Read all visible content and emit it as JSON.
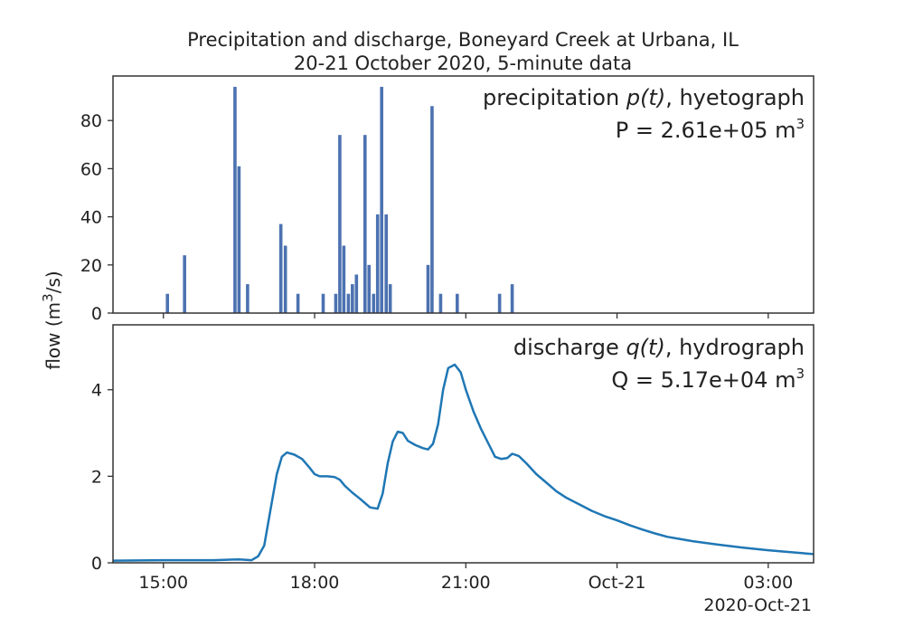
{
  "chart_data": {
    "type": "bar+line",
    "title_line1": "Precipitation and discharge, Boneyard Creek at Urbana, IL",
    "title_line2": "20-21 October 2020, 5-minute data",
    "ylabel_main": "flow (m",
    "ylabel_sup": "3",
    "ylabel_tail": "/s)",
    "x_range_hours": [
      14.0,
      27.9
    ],
    "x_ticks": [
      {
        "hour": 15,
        "label": "15:00"
      },
      {
        "hour": 18,
        "label": "18:00"
      },
      {
        "hour": 21,
        "label": "21:00"
      },
      {
        "hour": 24,
        "label": "Oct-21"
      },
      {
        "hour": 27,
        "label": "03:00"
      }
    ],
    "x_offset_label": "2020-Oct-21",
    "precipitation": {
      "type": "bar",
      "label_pre": "precipitation ",
      "label_var": "p(t)",
      "label_post": ", hyetograph",
      "total_main": "P = 2.61e+05 m",
      "total_sup": "3",
      "ylim": [
        0,
        98.5
      ],
      "yticks": [
        0,
        20,
        40,
        60,
        80
      ],
      "color": "#4c72b0",
      "bars": [
        {
          "t": 15.08,
          "v": 8
        },
        {
          "t": 15.42,
          "v": 24
        },
        {
          "t": 16.42,
          "v": 94
        },
        {
          "t": 16.5,
          "v": 61
        },
        {
          "t": 16.67,
          "v": 12
        },
        {
          "t": 17.33,
          "v": 37
        },
        {
          "t": 17.42,
          "v": 28
        },
        {
          "t": 17.67,
          "v": 8
        },
        {
          "t": 18.17,
          "v": 8
        },
        {
          "t": 18.42,
          "v": 8
        },
        {
          "t": 18.5,
          "v": 74
        },
        {
          "t": 18.58,
          "v": 28
        },
        {
          "t": 18.67,
          "v": 8
        },
        {
          "t": 18.75,
          "v": 12
        },
        {
          "t": 18.83,
          "v": 16
        },
        {
          "t": 19.0,
          "v": 74
        },
        {
          "t": 19.08,
          "v": 20
        },
        {
          "t": 19.17,
          "v": 8
        },
        {
          "t": 19.25,
          "v": 41
        },
        {
          "t": 19.33,
          "v": 94
        },
        {
          "t": 19.42,
          "v": 41
        },
        {
          "t": 19.5,
          "v": 12
        },
        {
          "t": 20.25,
          "v": 20
        },
        {
          "t": 20.33,
          "v": 86
        },
        {
          "t": 20.5,
          "v": 8
        },
        {
          "t": 20.83,
          "v": 8
        },
        {
          "t": 21.67,
          "v": 8
        },
        {
          "t": 21.92,
          "v": 12
        }
      ]
    },
    "discharge": {
      "type": "line",
      "label_pre": "discharge ",
      "label_var": "q(t)",
      "label_post": ", hydrograph",
      "total_main": "Q = 5.17e+04 m",
      "total_sup": "3",
      "ylim": [
        0,
        5.5
      ],
      "yticks": [
        0,
        2,
        4
      ],
      "color": "#1f77b4",
      "points": [
        [
          14.0,
          0.05
        ],
        [
          15.0,
          0.06
        ],
        [
          16.0,
          0.06
        ],
        [
          16.5,
          0.08
        ],
        [
          16.75,
          0.06
        ],
        [
          16.88,
          0.15
        ],
        [
          17.0,
          0.4
        ],
        [
          17.12,
          1.2
        ],
        [
          17.25,
          2.05
        ],
        [
          17.35,
          2.45
        ],
        [
          17.45,
          2.55
        ],
        [
          17.6,
          2.5
        ],
        [
          17.75,
          2.4
        ],
        [
          17.9,
          2.2
        ],
        [
          18.0,
          2.05
        ],
        [
          18.1,
          2.0
        ],
        [
          18.25,
          2.0
        ],
        [
          18.4,
          1.98
        ],
        [
          18.5,
          1.92
        ],
        [
          18.6,
          1.78
        ],
        [
          18.75,
          1.62
        ],
        [
          18.9,
          1.48
        ],
        [
          19.0,
          1.38
        ],
        [
          19.1,
          1.28
        ],
        [
          19.25,
          1.25
        ],
        [
          19.35,
          1.6
        ],
        [
          19.45,
          2.3
        ],
        [
          19.55,
          2.8
        ],
        [
          19.65,
          3.03
        ],
        [
          19.75,
          3.0
        ],
        [
          19.85,
          2.82
        ],
        [
          20.0,
          2.72
        ],
        [
          20.15,
          2.65
        ],
        [
          20.25,
          2.62
        ],
        [
          20.35,
          2.75
        ],
        [
          20.45,
          3.2
        ],
        [
          20.55,
          4.0
        ],
        [
          20.65,
          4.5
        ],
        [
          20.78,
          4.58
        ],
        [
          20.9,
          4.4
        ],
        [
          21.0,
          4.0
        ],
        [
          21.15,
          3.5
        ],
        [
          21.3,
          3.1
        ],
        [
          21.45,
          2.75
        ],
        [
          21.58,
          2.45
        ],
        [
          21.7,
          2.4
        ],
        [
          21.82,
          2.42
        ],
        [
          21.92,
          2.52
        ],
        [
          22.05,
          2.47
        ],
        [
          22.2,
          2.3
        ],
        [
          22.4,
          2.05
        ],
        [
          22.6,
          1.85
        ],
        [
          22.8,
          1.65
        ],
        [
          23.0,
          1.5
        ],
        [
          23.25,
          1.35
        ],
        [
          23.5,
          1.2
        ],
        [
          23.75,
          1.08
        ],
        [
          24.0,
          0.98
        ],
        [
          24.25,
          0.87
        ],
        [
          24.5,
          0.77
        ],
        [
          24.75,
          0.68
        ],
        [
          25.0,
          0.6
        ],
        [
          25.5,
          0.5
        ],
        [
          26.0,
          0.42
        ],
        [
          26.5,
          0.35
        ],
        [
          27.0,
          0.29
        ],
        [
          27.5,
          0.24
        ],
        [
          27.9,
          0.2
        ]
      ]
    }
  }
}
